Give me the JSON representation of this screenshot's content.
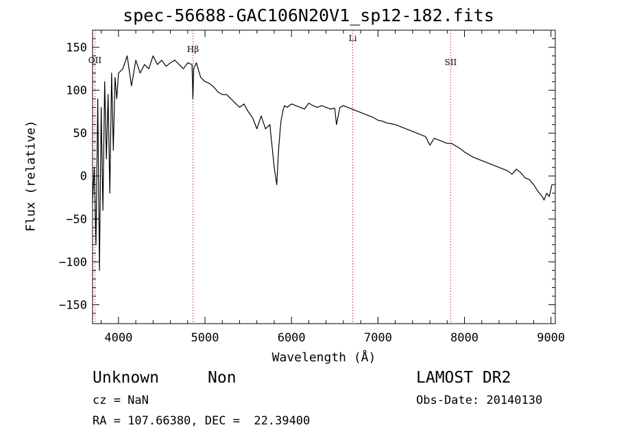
{
  "chart_data": {
    "type": "line",
    "title": "spec-56688-GAC106N20V1_sp12-182.fits",
    "xlabel": "Wavelength (Å)",
    "ylabel": "Flux (relative)",
    "xlim": [
      3700,
      9050
    ],
    "ylim": [
      -172,
      170
    ],
    "xticks": [
      4000,
      5000,
      6000,
      7000,
      8000,
      9000
    ],
    "yticks": [
      -150,
      -100,
      -50,
      0,
      50,
      100,
      150
    ],
    "grid": false,
    "line_color": "#000000",
    "marker_color": "#b03030",
    "spectral_lines": [
      {
        "label": "OII",
        "x": 3727
      },
      {
        "label": "Hβ",
        "x": 4861
      },
      {
        "label": "Li",
        "x": 6708
      },
      {
        "label": "SII",
        "x": 7840
      }
    ],
    "spectrum": {
      "x": [
        3700,
        3720,
        3740,
        3760,
        3780,
        3800,
        3820,
        3840,
        3860,
        3880,
        3900,
        3920,
        3940,
        3960,
        3980,
        4000,
        4050,
        4100,
        4150,
        4200,
        4250,
        4300,
        4350,
        4400,
        4450,
        4500,
        4550,
        4600,
        4650,
        4700,
        4750,
        4800,
        4850,
        4860,
        4870,
        4900,
        4950,
        5000,
        5050,
        5100,
        5150,
        5200,
        5250,
        5300,
        5350,
        5400,
        5450,
        5500,
        5550,
        5600,
        5650,
        5700,
        5750,
        5800,
        5830,
        5850,
        5870,
        5880,
        5890,
        5900,
        5920,
        5950,
        6000,
        6050,
        6100,
        6150,
        6200,
        6250,
        6300,
        6350,
        6400,
        6450,
        6500,
        6520,
        6560,
        6600,
        6650,
        6700,
        6750,
        6800,
        6850,
        6900,
        6950,
        7000,
        7050,
        7100,
        7150,
        7200,
        7250,
        7300,
        7350,
        7400,
        7450,
        7500,
        7550,
        7600,
        7650,
        7700,
        7750,
        7800,
        7850,
        7900,
        7950,
        8000,
        8050,
        8100,
        8150,
        8200,
        8250,
        8300,
        8350,
        8400,
        8450,
        8500,
        8550,
        8600,
        8650,
        8700,
        8750,
        8800,
        8850,
        8900,
        8920,
        8950,
        8980,
        9000,
        9010
      ],
      "y": [
        -30,
        10,
        -80,
        90,
        -110,
        80,
        -40,
        110,
        20,
        95,
        -20,
        120,
        30,
        115,
        90,
        120,
        125,
        140,
        105,
        135,
        120,
        130,
        125,
        140,
        130,
        135,
        128,
        132,
        135,
        130,
        125,
        132,
        130,
        90,
        125,
        132,
        115,
        110,
        108,
        104,
        98,
        95,
        95,
        90,
        85,
        80,
        84,
        75,
        68,
        55,
        70,
        55,
        60,
        10,
        -10,
        30,
        55,
        65,
        70,
        76,
        82,
        80,
        84,
        82,
        80,
        78,
        85,
        82,
        80,
        82,
        80,
        78,
        79,
        60,
        80,
        82,
        80,
        78,
        76,
        74,
        72,
        70,
        68,
        65,
        64,
        62,
        61,
        60,
        58,
        56,
        54,
        52,
        50,
        48,
        46,
        36,
        44,
        42,
        40,
        38,
        38,
        35,
        32,
        28,
        25,
        22,
        20,
        18,
        16,
        14,
        12,
        10,
        8,
        6,
        2,
        8,
        4,
        -2,
        -4,
        -10,
        -18,
        -24,
        -28,
        -20,
        -24,
        -15,
        -10
      ]
    }
  },
  "annotations": {
    "object_class": "Unknown",
    "subclass": "Non",
    "cz": "cz = NaN",
    "ra_dec": "RA = 107.66380, DEC =  22.39400",
    "survey": "LAMOST DR2",
    "obs_date": "Obs-Date: 20140130"
  }
}
